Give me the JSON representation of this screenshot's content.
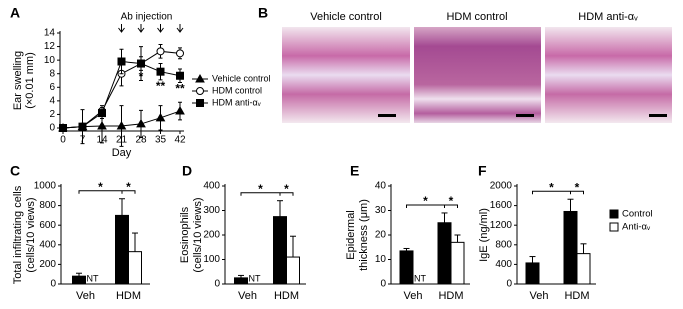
{
  "chart_data": [
    {
      "type": "line",
      "label": "A",
      "annotation": "Ab injection",
      "injection_days": [
        21,
        28,
        35,
        42
      ],
      "ylabel": [
        "Ear swelling",
        "(×0.01 mm)"
      ],
      "xlabel": "Day",
      "x": [
        0,
        7,
        14,
        21,
        28,
        35,
        42
      ],
      "xlim": [
        0,
        42
      ],
      "xticks": [
        0,
        7,
        14,
        21,
        28,
        35,
        42
      ],
      "ylim": [
        0,
        14
      ],
      "yticks": [
        0,
        2,
        4,
        6,
        8,
        10,
        12,
        14
      ],
      "legend": "right",
      "series": [
        {
          "name": "Vehicle control",
          "color": "#000000",
          "marker": "triangle",
          "values": [
            0,
            0.2,
            0.3,
            0.3,
            0.6,
            1.5,
            2.5
          ],
          "errors": [
            0,
            2.5,
            2.5,
            3,
            2,
            1.8,
            1.3
          ]
        },
        {
          "name": "HDM control",
          "color": "#000000",
          "marker": "circle-open",
          "values": [
            0,
            0.2,
            2.5,
            8,
            9.5,
            11.3,
            11
          ],
          "errors": [
            0,
            0.3,
            0.8,
            1.8,
            2.5,
            1,
            0.8
          ]
        },
        {
          "name": "HDM anti-αᵥ",
          "color": "#000000",
          "marker": "square",
          "values": [
            0,
            0.2,
            2.2,
            9.8,
            9.5,
            8.3,
            7.7
          ],
          "errors": [
            0,
            0.3,
            0.8,
            1.8,
            1,
            1.2,
            1
          ]
        }
      ],
      "significance": [
        {
          "x": 28,
          "label": "*"
        },
        {
          "x": 35,
          "label": "**"
        },
        {
          "x": 42,
          "label": "**"
        }
      ]
    },
    {
      "type": "bar",
      "label": "C",
      "ylabel": [
        "Total infiltrating cells",
        "(cells/10 views)"
      ],
      "categories": [
        "Veh",
        "HDM"
      ],
      "ylim": [
        0,
        1000
      ],
      "yticks": [
        0,
        200,
        400,
        600,
        800,
        1000
      ],
      "nt_label": "NT",
      "significance": [
        "*",
        "*"
      ],
      "series": [
        {
          "color": "#000000",
          "values": [
            80,
            700
          ],
          "errors": [
            30,
            170
          ]
        },
        {
          "color": "#ffffff",
          "values": [
            null,
            330
          ],
          "errors": [
            null,
            190
          ]
        }
      ]
    },
    {
      "type": "bar",
      "label": "D",
      "ylabel": [
        "Eosinophils",
        "(cells/10 views)"
      ],
      "categories": [
        "Veh",
        "HDM"
      ],
      "ylim": [
        0,
        400
      ],
      "yticks": [
        0,
        100,
        200,
        300,
        400
      ],
      "nt_label": "NT",
      "significance": [
        "*",
        "*"
      ],
      "series": [
        {
          "color": "#000000",
          "values": [
            25,
            275
          ],
          "errors": [
            10,
            65
          ]
        },
        {
          "color": "#ffffff",
          "values": [
            null,
            110
          ],
          "errors": [
            null,
            85
          ]
        }
      ]
    },
    {
      "type": "bar",
      "label": "E",
      "ylabel": [
        "Epidermal",
        "thickness (μm)"
      ],
      "categories": [
        "Veh",
        "HDM"
      ],
      "ylim": [
        0,
        40
      ],
      "yticks": [
        0,
        10,
        20,
        30,
        40
      ],
      "nt_label": "NT",
      "significance": [
        "*",
        "*"
      ],
      "series": [
        {
          "color": "#000000",
          "values": [
            13.5,
            25
          ],
          "errors": [
            1,
            4
          ]
        },
        {
          "color": "#ffffff",
          "values": [
            null,
            17
          ],
          "errors": [
            null,
            3
          ]
        }
      ]
    },
    {
      "type": "bar",
      "label": "F",
      "ylabel": [
        "IgE (ng/ml)"
      ],
      "categories": [
        "Veh",
        "HDM"
      ],
      "ylim": [
        0,
        2000
      ],
      "yticks": [
        0,
        400,
        800,
        1200,
        1600,
        2000
      ],
      "significance": [
        "*",
        "*"
      ],
      "legend": "right",
      "series": [
        {
          "name": "Control",
          "color": "#000000",
          "values": [
            430,
            1480
          ],
          "errors": [
            130,
            250
          ]
        },
        {
          "name": "Anti-αᵥ",
          "color": "#ffffff",
          "values": [
            null,
            620
          ],
          "errors": [
            null,
            200
          ]
        }
      ]
    }
  ],
  "panel_b": {
    "label": "B",
    "titles": [
      "Vehicle control",
      "HDM control",
      "HDM anti-αᵥ"
    ]
  }
}
